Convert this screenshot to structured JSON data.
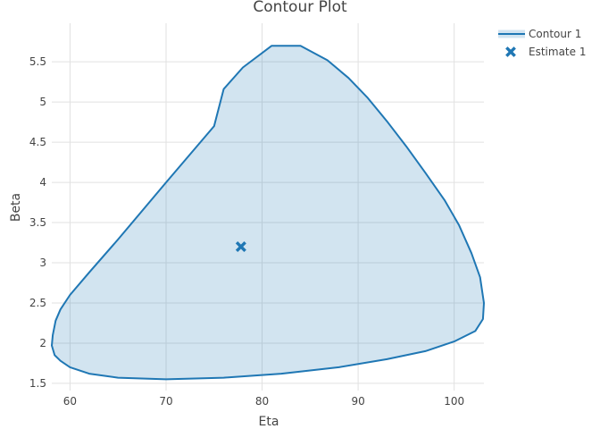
{
  "chart_data": {
    "type": "line",
    "title": "Contour Plot",
    "xlabel": "Eta",
    "ylabel": "Beta",
    "xlim": [
      58.1,
      103.1
    ],
    "ylim": [
      1.41,
      5.98
    ],
    "x_ticks": [
      "60",
      "70",
      "80",
      "90",
      "100"
    ],
    "y_ticks": [
      "1.5",
      "2",
      "2.5",
      "3",
      "3.5",
      "4",
      "4.5",
      "5",
      "5.5"
    ],
    "grid": true,
    "legend_position": "top-right",
    "accent_color": "#1f77b4",
    "fill_color": "rgba(31,119,180,0.2)",
    "series": [
      {
        "name": "Contour 1",
        "kind": "closed-contour",
        "x": [
          58.2,
          58.5,
          59.0,
          60.0,
          62.0,
          65.0,
          70.0,
          75.0,
          76.0,
          78.0,
          81.0,
          84.0,
          86.8,
          89.0,
          91.0,
          93.0,
          95.0,
          97.0,
          99.0,
          100.5,
          101.8,
          102.7,
          103.1,
          103.0,
          102.2,
          100.0,
          97.0,
          93.0,
          88.0,
          82.0,
          76.0,
          70.0,
          65.0,
          62.0,
          60.0,
          59.0,
          58.4,
          58.1,
          58.2
        ],
        "y": [
          2.1,
          2.28,
          2.42,
          2.6,
          2.88,
          3.29,
          4.0,
          4.7,
          5.16,
          5.43,
          5.7,
          5.7,
          5.52,
          5.3,
          5.05,
          4.76,
          4.45,
          4.12,
          3.78,
          3.47,
          3.12,
          2.82,
          2.5,
          2.3,
          2.15,
          2.02,
          1.9,
          1.8,
          1.7,
          1.62,
          1.57,
          1.55,
          1.57,
          1.62,
          1.7,
          1.78,
          1.85,
          1.97,
          2.1
        ]
      },
      {
        "name": "Estimate 1",
        "kind": "marker",
        "x": [
          77.8
        ],
        "y": [
          3.2
        ]
      }
    ]
  }
}
